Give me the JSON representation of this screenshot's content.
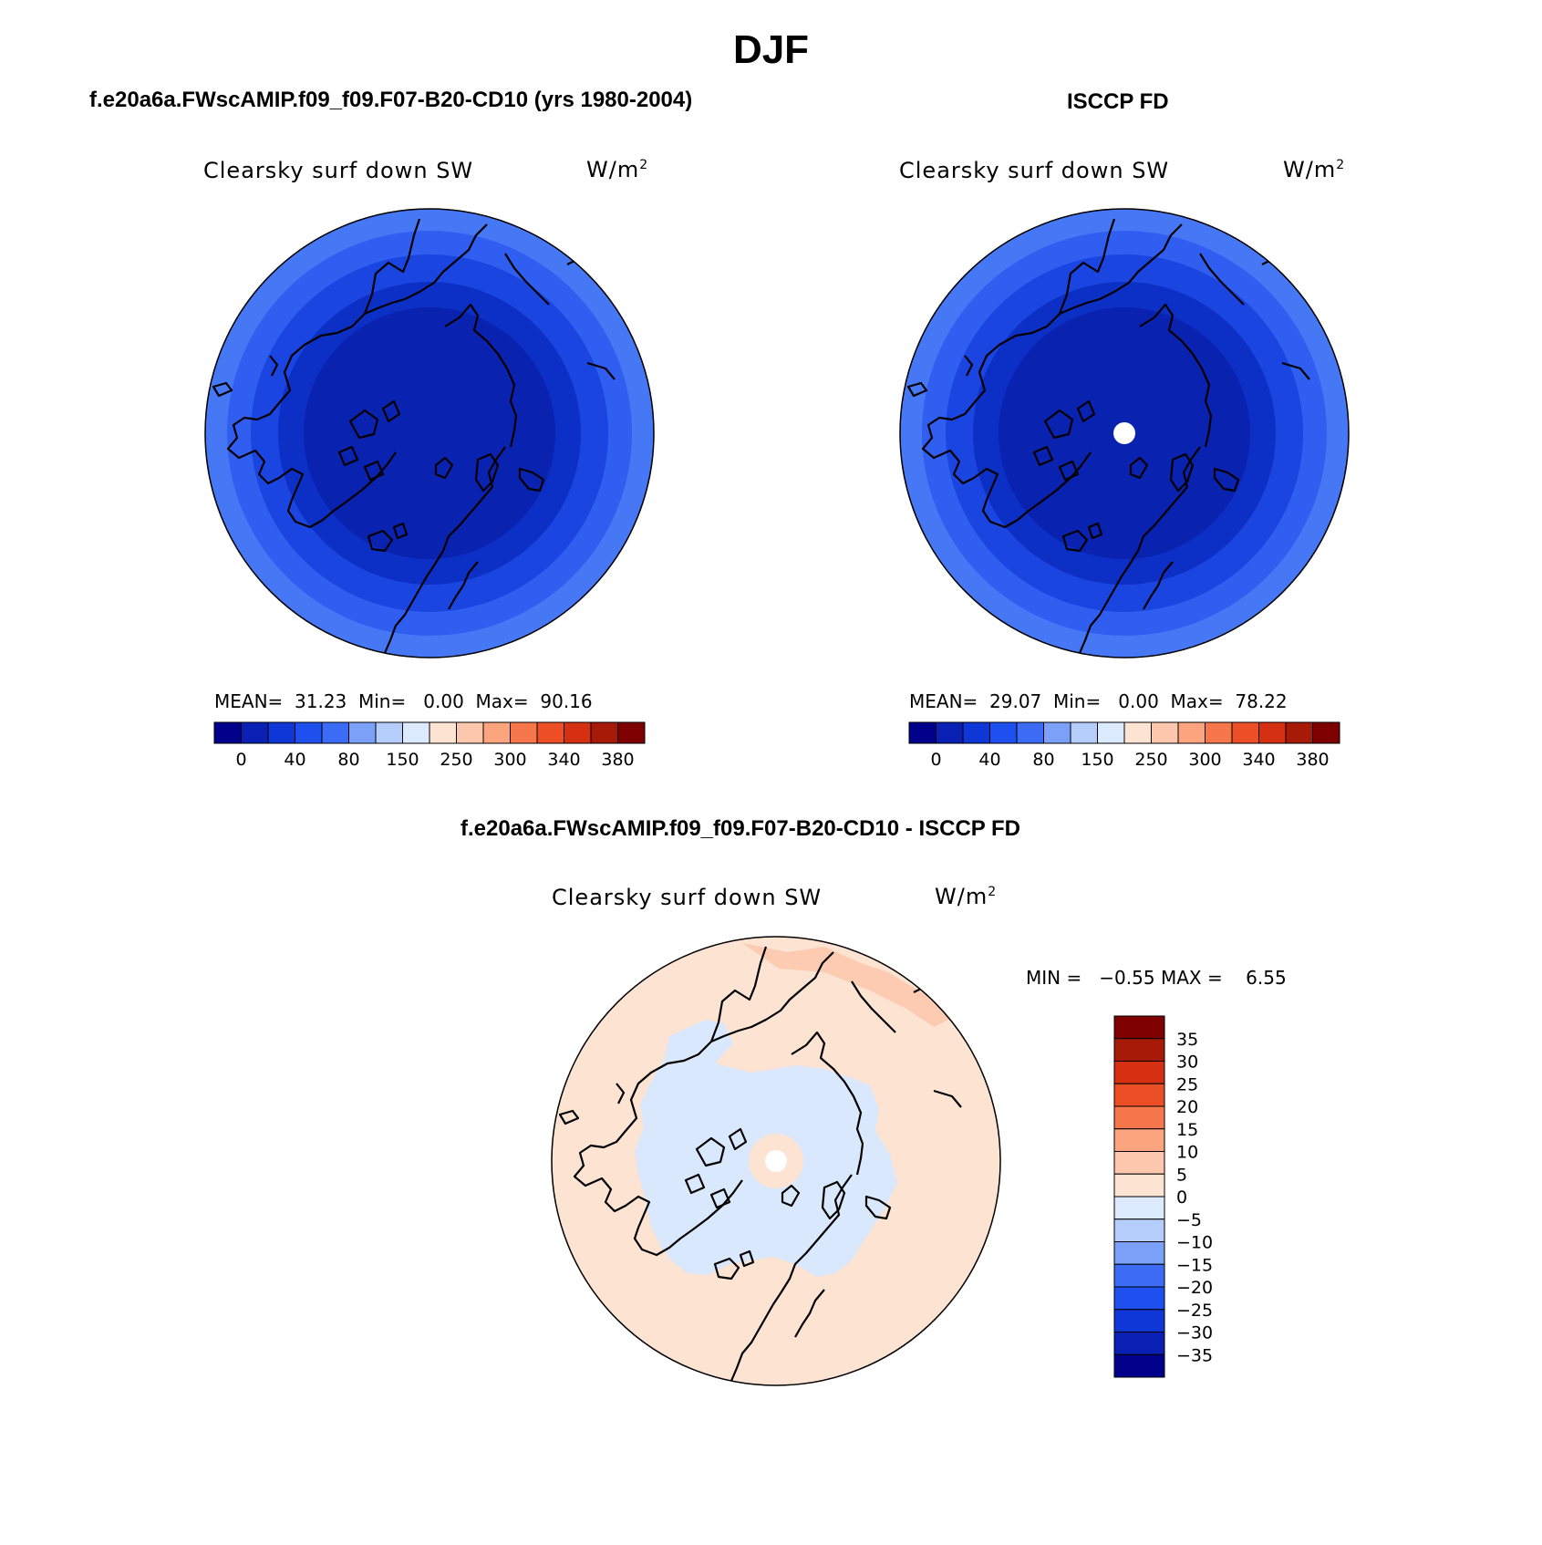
{
  "figure_title": "DJF",
  "panels": [
    {
      "id": "model",
      "title": "f.e20a6a.FWscAMIP.f09_f09.F07-B20-CD10 (yrs 1980-2004)",
      "field_label": "Clearsky surf down SW",
      "units_label": "W/m",
      "units_exp": "2",
      "stats_text": "MEAN=  31.23  Min=   0.00  Max=  90.16",
      "stats": {
        "mean": 31.23,
        "min": 0.0,
        "max": 90.16
      },
      "missing_pole": false
    },
    {
      "id": "obs",
      "title": "ISCCP FD",
      "field_label": "Clearsky surf down SW",
      "units_label": "W/m",
      "units_exp": "2",
      "stats_text": "MEAN=  29.07  Min=   0.00  Max=  78.22",
      "stats": {
        "mean": 29.07,
        "min": 0.0,
        "max": 78.22
      },
      "missing_pole": true
    },
    {
      "id": "diff",
      "title": "f.e20a6a.FWscAMIP.f09_f09.F07-B20-CD10 - ISCCP FD",
      "field_label": "Clearsky surf down SW",
      "units_label": "W/m",
      "units_exp": "2",
      "stats_text": "MIN =   −0.55 MAX =    6.55",
      "stats": {
        "min": -0.55,
        "max": 6.55
      },
      "missing_pole": true
    }
  ],
  "colorbar_abs": {
    "colors": [
      "#00008b",
      "#0a1fb4",
      "#0f36d6",
      "#1e4fef",
      "#3c6cf6",
      "#7aa0f8",
      "#b4cdfb",
      "#dbeafc",
      "#fde3d2",
      "#fdc7ad",
      "#fba47e",
      "#f7774d",
      "#ec4f25",
      "#d63012",
      "#a81a08",
      "#7f0000"
    ],
    "tick_labels": [
      "0",
      "40",
      "80",
      "150",
      "250",
      "300",
      "340",
      "380"
    ]
  },
  "colorbar_diff": {
    "colors": [
      "#00008b",
      "#0a1fb4",
      "#0f36d6",
      "#1e4fef",
      "#3c6cf6",
      "#7aa0f8",
      "#b4cdfb",
      "#dbeafc",
      "#fde3d2",
      "#fdc7ad",
      "#fba47e",
      "#f7774d",
      "#ec4f25",
      "#d63012",
      "#a81a08",
      "#7f0000"
    ],
    "tick_labels": [
      "35",
      "30",
      "25",
      "20",
      "15",
      "10",
      "5",
      "0",
      "−5",
      "−10",
      "−15",
      "−20",
      "−25",
      "−30",
      "−35"
    ]
  },
  "map_colors": {
    "abs_rings": [
      "#4678f6",
      "#2f5ef0",
      "#1a45e0",
      "#0c2fc6",
      "#0a22b0"
    ],
    "diff_positive": "#fde3d2",
    "diff_negative": "#d9e8fc",
    "diff_positive_strong": "#fccbb2",
    "missing": "#ffffff",
    "coast": "#000000"
  }
}
